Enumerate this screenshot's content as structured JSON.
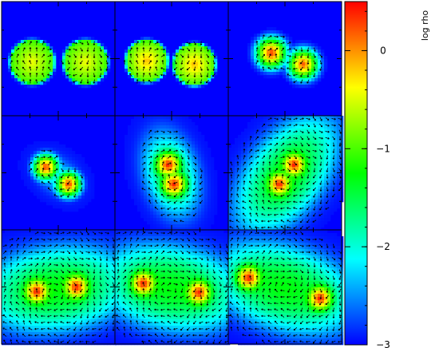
{
  "chart_data": {
    "type": "heatmap",
    "description_layout": "3x3 grid of density snapshots with velocity arrows",
    "colorbar": {
      "label": "log rho",
      "range": [
        -3,
        0.5
      ],
      "ticks": [
        {
          "value": 0,
          "label": "0"
        },
        {
          "value": -1,
          "label": "−1"
        },
        {
          "value": -2,
          "label": "−2"
        },
        {
          "value": -3,
          "label": "−3"
        }
      ],
      "colormap": [
        "#0000ff",
        "#00ffff",
        "#00ff00",
        "#ffff00",
        "#ff0000"
      ]
    },
    "background_log_rho": -3,
    "panels": [
      {
        "blobs": [
          {
            "x": 0.27,
            "y": 0.53,
            "r": 0.2,
            "peak": -0.6,
            "flat": true
          },
          {
            "x": 0.74,
            "y": 0.53,
            "r": 0.2,
            "peak": -0.6,
            "flat": true
          }
        ],
        "halo": 0
      },
      {
        "blobs": [
          {
            "x": 0.28,
            "y": 0.52,
            "r": 0.19,
            "peak": -0.4,
            "flat": true
          },
          {
            "x": 0.7,
            "y": 0.55,
            "r": 0.19,
            "peak": -0.4,
            "flat": true
          }
        ],
        "halo": 0
      },
      {
        "blobs": [
          {
            "x": 0.38,
            "y": 0.45,
            "r": 0.16,
            "peak": 0.3,
            "flat": false
          },
          {
            "x": 0.66,
            "y": 0.55,
            "r": 0.16,
            "peak": 0.2,
            "flat": false
          }
        ],
        "halo": 0
      },
      {
        "blobs": [
          {
            "x": 0.39,
            "y": 0.45,
            "r": 0.13,
            "peak": 0.3,
            "flat": false
          },
          {
            "x": 0.59,
            "y": 0.6,
            "r": 0.13,
            "peak": 0.3,
            "flat": false
          }
        ],
        "halo": 0.05
      },
      {
        "blobs": [
          {
            "x": 0.47,
            "y": 0.43,
            "r": 0.15,
            "peak": 0.4,
            "flat": false
          },
          {
            "x": 0.52,
            "y": 0.6,
            "r": 0.15,
            "peak": 0.4,
            "flat": false
          }
        ],
        "halo": 0.35
      },
      {
        "blobs": [
          {
            "x": 0.58,
            "y": 0.43,
            "r": 0.14,
            "peak": 0.4,
            "flat": false
          },
          {
            "x": 0.45,
            "y": 0.6,
            "r": 0.14,
            "peak": 0.4,
            "flat": false
          }
        ],
        "halo": 0.8
      },
      {
        "blobs": [
          {
            "x": 0.31,
            "y": 0.54,
            "r": 0.15,
            "peak": 0.4,
            "flat": false
          },
          {
            "x": 0.66,
            "y": 0.5,
            "r": 0.15,
            "peak": 0.4,
            "flat": false
          }
        ],
        "halo": 1.0
      },
      {
        "blobs": [
          {
            "x": 0.25,
            "y": 0.47,
            "r": 0.15,
            "peak": 0.4,
            "flat": false
          },
          {
            "x": 0.74,
            "y": 0.55,
            "r": 0.15,
            "peak": 0.4,
            "flat": false
          }
        ],
        "halo": 1.0
      },
      {
        "blobs": [
          {
            "x": 0.18,
            "y": 0.42,
            "r": 0.15,
            "peak": 0.4,
            "flat": false
          },
          {
            "x": 0.81,
            "y": 0.6,
            "r": 0.15,
            "peak": 0.4,
            "flat": false
          }
        ],
        "halo": 1.0
      }
    ]
  }
}
